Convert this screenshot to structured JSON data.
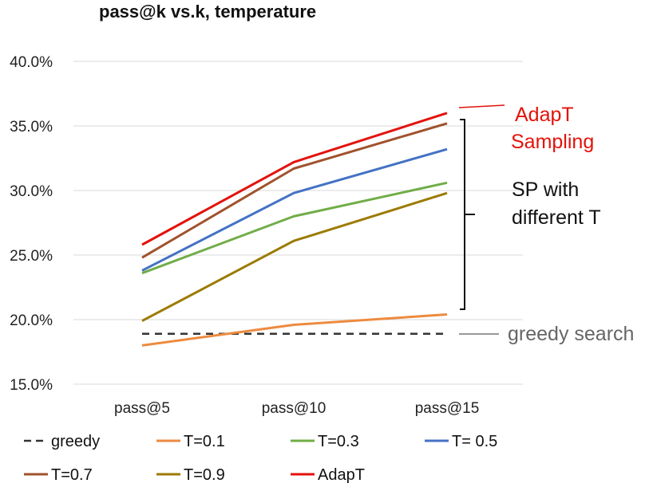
{
  "chart_data": {
    "type": "line",
    "title": "pass@k vs.k, temperature",
    "xlabel": "",
    "ylabel": "",
    "categories": [
      "pass@5",
      "pass@10",
      "pass@15"
    ],
    "ylim": [
      0.15,
      0.4
    ],
    "y_ticks": [
      0.15,
      0.2,
      0.25,
      0.3,
      0.35,
      0.4
    ],
    "y_tick_labels": [
      "15.0%",
      "20.0%",
      "25.0%",
      "30.0%",
      "35.0%",
      "40.0%"
    ],
    "grid": "horizontal",
    "legend_position": "bottom",
    "series": [
      {
        "name": "greedy",
        "legend_label": "greedy",
        "color": "#333333",
        "dash": true,
        "values": [
          0.189,
          0.189,
          0.189
        ]
      },
      {
        "name": "T=0.1",
        "legend_label": "T=0.1",
        "color": "#ED8A3F",
        "dash": false,
        "values": [
          0.18,
          0.196,
          0.204
        ]
      },
      {
        "name": "T=0.3",
        "legend_label": "T=0.3",
        "color": "#70AD47",
        "dash": false,
        "values": [
          0.236,
          0.28,
          0.306
        ]
      },
      {
        "name": "T=0.5",
        "legend_label": "T= 0.5",
        "color": "#4472C4",
        "dash": false,
        "values": [
          0.238,
          0.298,
          0.332
        ]
      },
      {
        "name": "T=0.7",
        "legend_label": "T=0.7",
        "color": "#A0522D",
        "dash": false,
        "values": [
          0.248,
          0.317,
          0.352
        ]
      },
      {
        "name": "T=0.9",
        "legend_label": "T=0.9",
        "color": "#9C7A00",
        "dash": false,
        "values": [
          0.199,
          0.261,
          0.298
        ]
      },
      {
        "name": "AdapT",
        "legend_label": "AdapT",
        "color": "#E3120B",
        "dash": false,
        "values": [
          0.258,
          0.322,
          0.36
        ]
      }
    ],
    "annotations": {
      "adapt_line1": "AdapT",
      "adapt_line2": "Sampling",
      "adapt_color": "#E3120B",
      "sp_line1": "SP with",
      "sp_line2": "different T",
      "greedy_label": "greedy search",
      "greedy_label_color": "#666666"
    }
  }
}
